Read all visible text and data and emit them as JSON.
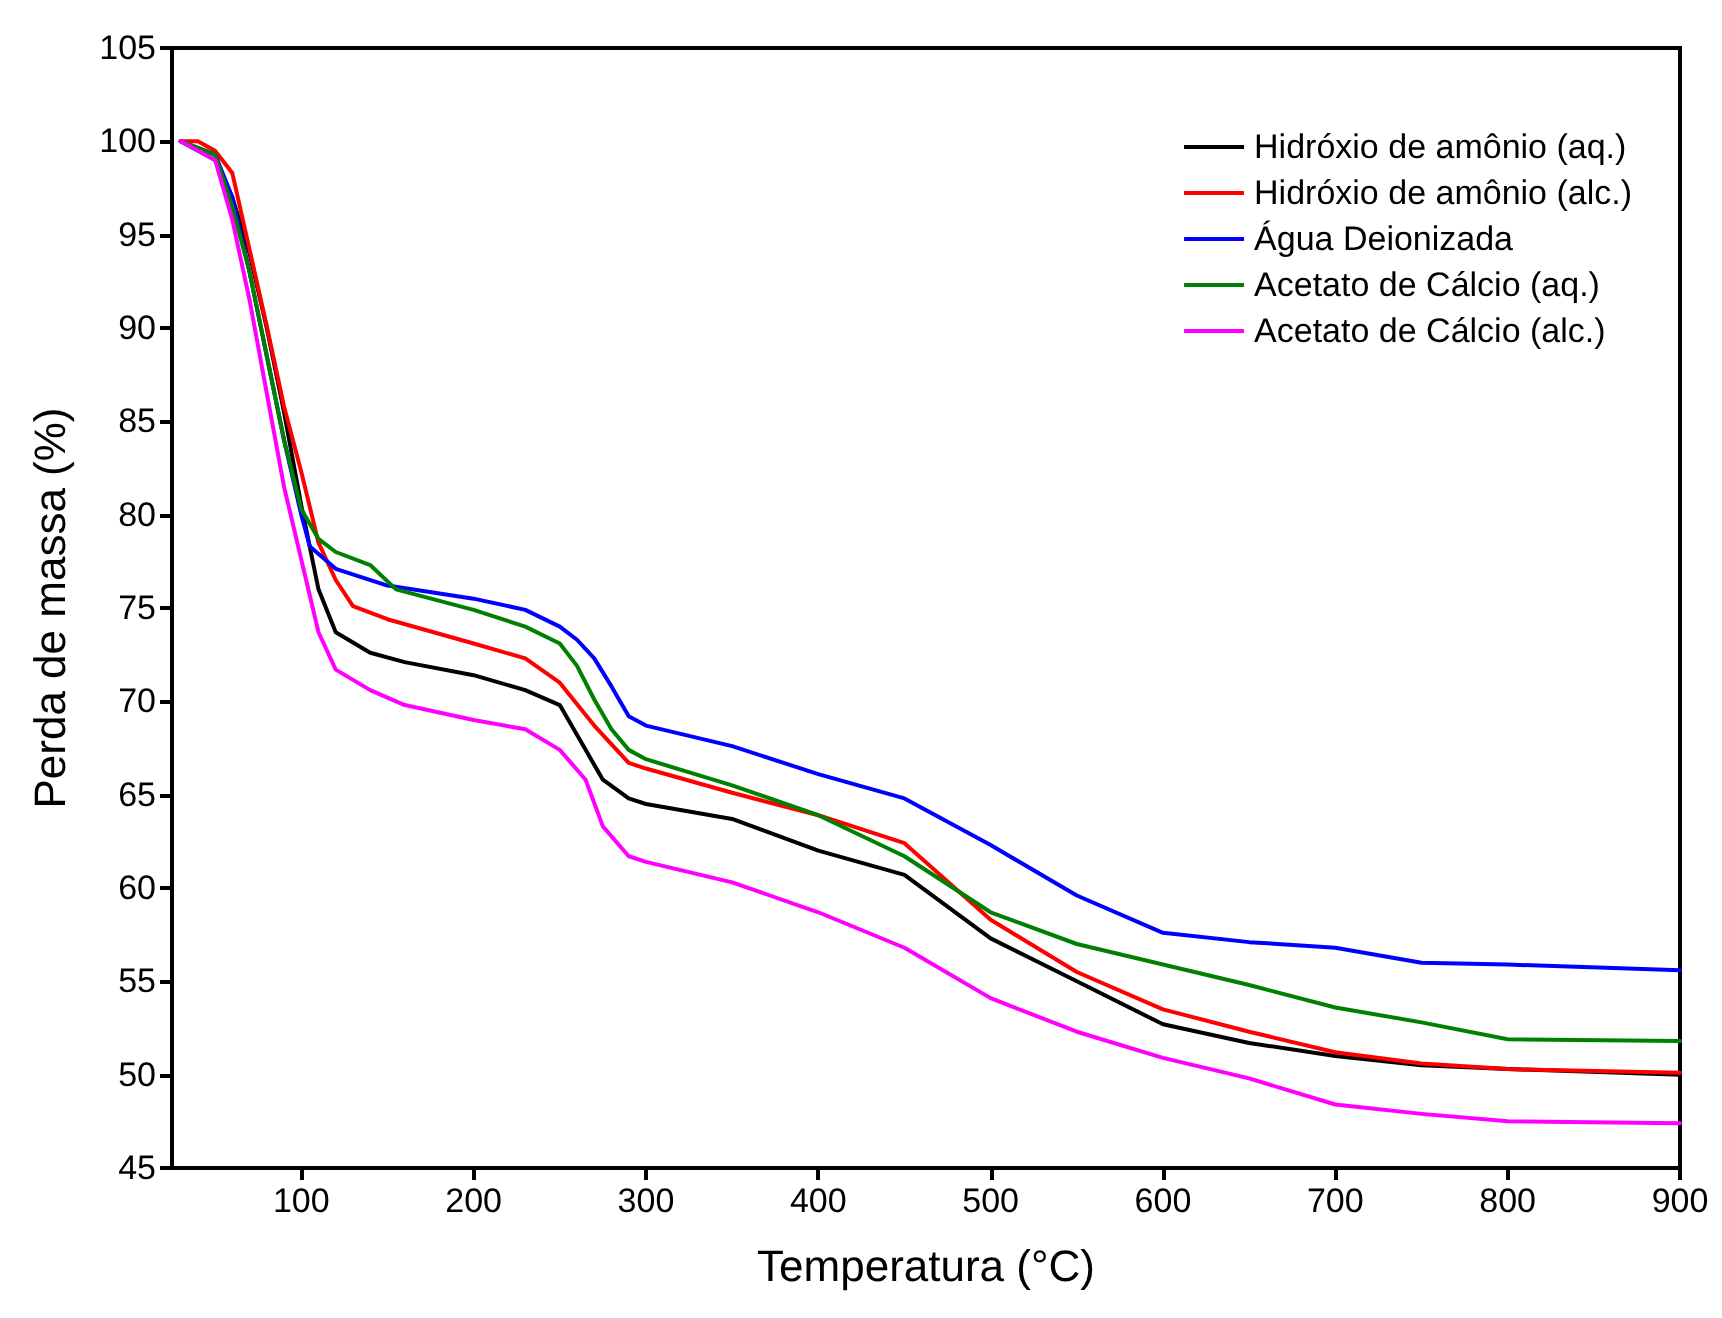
{
  "chart_data": {
    "type": "line",
    "xlabel": "Temperatura (°C)",
    "ylabel": "Perda de massa (%)",
    "xlim": [
      25,
      900
    ],
    "xticks": [
      100,
      200,
      300,
      400,
      500,
      600,
      700,
      800,
      900
    ],
    "ylim": [
      45,
      105
    ],
    "yticks": [
      45,
      50,
      55,
      60,
      65,
      70,
      75,
      80,
      85,
      90,
      95,
      100,
      105
    ],
    "grid": false,
    "legend": "top right",
    "marker": "none",
    "line_style": "solid",
    "series": [
      {
        "name": "Hidróxio de amônio (aq.)",
        "color": "#000000",
        "x": [
          30,
          50,
          60,
          70,
          80,
          90,
          100,
          110,
          120,
          140,
          160,
          200,
          230,
          250,
          265,
          275,
          290,
          300,
          350,
          400,
          450,
          500,
          550,
          600,
          650,
          700,
          750,
          800,
          900
        ],
        "values": [
          100,
          99,
          97,
          94,
          90,
          85.5,
          80.5,
          76,
          73.7,
          72.6,
          72.1,
          71.4,
          70.6,
          69.8,
          67.4,
          65.8,
          64.8,
          64.5,
          63.7,
          62,
          60.7,
          57.3,
          55,
          52.7,
          51.7,
          51,
          50.5,
          50.3,
          50
        ]
      },
      {
        "name": "Hidróxio de amônio (alc.)",
        "color": "#ff0000",
        "x": [
          30,
          40,
          50,
          60,
          70,
          80,
          90,
          100,
          110,
          120,
          130,
          150,
          200,
          230,
          250,
          270,
          290,
          300,
          350,
          400,
          450,
          500,
          550,
          600,
          650,
          700,
          750,
          800,
          900
        ],
        "values": [
          100,
          100,
          99.5,
          98.3,
          94.2,
          90.1,
          85.8,
          82.3,
          78.5,
          76.5,
          75.1,
          74.4,
          73.1,
          72.3,
          71,
          68.7,
          66.7,
          66.4,
          65.1,
          63.9,
          62.4,
          58.3,
          55.5,
          53.5,
          52.3,
          51.2,
          50.6,
          50.3,
          50.1
        ]
      },
      {
        "name": "Água Deionizada",
        "color": "#0000ff",
        "x": [
          30,
          50,
          60,
          70,
          80,
          90,
          100,
          105,
          120,
          150,
          200,
          230,
          250,
          260,
          270,
          280,
          290,
          300,
          350,
          400,
          450,
          500,
          550,
          600,
          650,
          700,
          750,
          800,
          900
        ],
        "values": [
          100,
          99.3,
          97,
          93,
          88.5,
          84,
          80,
          78.3,
          77.1,
          76.2,
          75.5,
          74.9,
          74,
          73.3,
          72.3,
          70.8,
          69.2,
          68.7,
          67.6,
          66.1,
          64.8,
          62.3,
          59.6,
          57.6,
          57.1,
          56.8,
          56,
          55.9,
          55.6
        ]
      },
      {
        "name": "Acetato de Cálcio (aq.)",
        "color": "#008000",
        "x": [
          30,
          50,
          60,
          70,
          80,
          90,
          100,
          110,
          120,
          140,
          155,
          200,
          230,
          250,
          260,
          270,
          280,
          290,
          300,
          350,
          400,
          450,
          500,
          550,
          600,
          650,
          700,
          750,
          800,
          900
        ],
        "values": [
          100,
          99.3,
          96.5,
          93,
          88.5,
          84,
          80.3,
          78.7,
          78,
          77.3,
          76,
          74.9,
          74,
          73.1,
          71.9,
          70.1,
          68.5,
          67.4,
          66.9,
          65.5,
          63.9,
          61.7,
          58.7,
          57,
          55.9,
          54.8,
          53.6,
          52.8,
          51.9,
          51.8
        ]
      },
      {
        "name": "Acetato de Cálcio (alc.)",
        "color": "#ff00ff",
        "x": [
          30,
          50,
          60,
          70,
          80,
          90,
          100,
          110,
          120,
          140,
          160,
          200,
          230,
          250,
          265,
          275,
          290,
          300,
          350,
          400,
          450,
          500,
          550,
          600,
          650,
          700,
          750,
          800,
          900
        ],
        "values": [
          100,
          99,
          95.8,
          91.5,
          86.5,
          81.5,
          77.6,
          73.7,
          71.7,
          70.6,
          69.8,
          69,
          68.5,
          67.4,
          65.8,
          63.3,
          61.7,
          61.4,
          60.3,
          58.7,
          56.8,
          54.1,
          52.3,
          50.9,
          49.8,
          48.4,
          47.9,
          47.5,
          47.4
        ]
      }
    ]
  }
}
